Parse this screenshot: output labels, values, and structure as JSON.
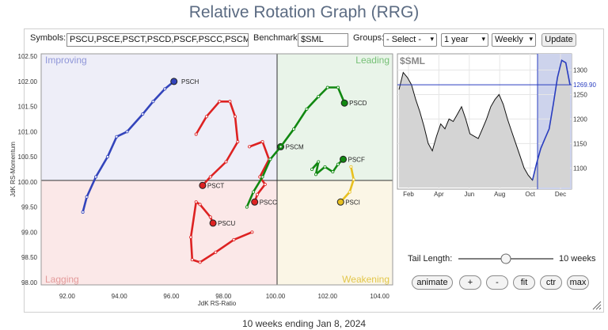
{
  "title": "Relative Rotation Graph (RRG)",
  "toolbar": {
    "symbols_label": "Symbols:",
    "symbols_value": "PSCU,PSCE,PSCT,PSCD,PSCF,PSCC,PSCM,PS(",
    "benchmark_label": "Benchmark:",
    "benchmark_value": "$SML",
    "groups_label": "Groups:",
    "groups_value": "- Select -",
    "period_value": "1 year",
    "frequency_value": "Weekly",
    "update_label": "Update"
  },
  "quadrants": {
    "improving": "Improving",
    "leading": "Leading",
    "lagging": "Lagging",
    "weakening": "Weakening"
  },
  "colors": {
    "improving_bg": "#eeeef8",
    "leading_bg": "#e9f4e9",
    "lagging_bg": "#fbe8e8",
    "weakening_bg": "#fbf6e6",
    "blue": "#3344bb",
    "red": "#dd2222",
    "green": "#118811",
    "yellow": "#e8c020"
  },
  "chart_data": [
    {
      "type": "scatter",
      "xlabel": "JdK RS-Ratio",
      "ylabel": "JdK RS-Momentum",
      "xlim": [
        91,
        104.5
      ],
      "ylim": [
        97.95,
        102.55
      ],
      "xticks": [
        "92.00",
        "94.00",
        "96.00",
        "98.00",
        "100.00",
        "102.00",
        "104.00"
      ],
      "yticks": [
        "102.50",
        "102.00",
        "101.50",
        "101.00",
        "100.50",
        "100.00",
        "99.50",
        "99.00",
        "98.50",
        "98.00"
      ],
      "series": [
        {
          "name": "PSCH",
          "color": "#3344bb",
          "label_x": 96.2,
          "label_y": 102.0,
          "points": [
            [
              92.6,
              99.4
            ],
            [
              92.75,
              99.7
            ],
            [
              93.1,
              100.1
            ],
            [
              93.55,
              100.5
            ],
            [
              93.9,
              100.9
            ],
            [
              94.3,
              101.0
            ],
            [
              94.9,
              101.35
            ],
            [
              95.3,
              101.6
            ],
            [
              95.75,
              101.85
            ],
            [
              96.1,
              102.0
            ]
          ]
        },
        {
          "name": "PSCT",
          "color": "#dd2222",
          "label_x": 97.2,
          "label_y": 99.93,
          "points": [
            [
              96.95,
              100.95
            ],
            [
              97.35,
              101.3
            ],
            [
              97.85,
              101.6
            ],
            [
              98.25,
              101.6
            ],
            [
              98.45,
              101.3
            ],
            [
              98.55,
              100.8
            ],
            [
              98.1,
              100.4
            ],
            [
              97.5,
              100.1
            ],
            [
              97.2,
              99.93
            ]
          ]
        },
        {
          "name": "PSCU",
          "color": "#dd2222",
          "label_x": 97.6,
          "label_y": 99.18,
          "points": [
            [
              99.1,
              99.0
            ],
            [
              98.4,
              98.85
            ],
            [
              97.7,
              98.6
            ],
            [
              97.1,
              98.4
            ],
            [
              96.8,
              98.45
            ],
            [
              96.75,
              98.9
            ],
            [
              96.95,
              99.6
            ],
            [
              97.1,
              99.55
            ],
            [
              97.5,
              99.3
            ],
            [
              97.6,
              99.18
            ]
          ]
        },
        {
          "name": "PSCC",
          "color": "#dd2222",
          "label_x": 99.2,
          "label_y": 99.6,
          "points": [
            [
              99.0,
              100.7
            ],
            [
              99.5,
              100.8
            ],
            [
              99.75,
              100.45
            ],
            [
              99.4,
              100.1
            ],
            [
              99.6,
              99.95
            ],
            [
              99.3,
              99.75
            ],
            [
              99.2,
              99.6
            ]
          ]
        },
        {
          "name": "PSCM",
          "color": "#118811",
          "label_x": 100.2,
          "label_y": 100.7,
          "points": [
            [
              98.9,
              99.5
            ],
            [
              99.15,
              99.8
            ],
            [
              99.5,
              100.1
            ],
            [
              99.8,
              100.45
            ],
            [
              100.2,
              100.7
            ]
          ]
        },
        {
          "name": "PSCD",
          "color": "#118811",
          "label_x": 102.65,
          "label_y": 101.57,
          "points": [
            [
              100.2,
              100.7
            ],
            [
              100.7,
              101.05
            ],
            [
              101.2,
              101.45
            ],
            [
              101.65,
              101.7
            ],
            [
              102.0,
              101.88
            ],
            [
              102.4,
              101.88
            ],
            [
              102.65,
              101.57
            ]
          ]
        },
        {
          "name": "PSCF",
          "color": "#118811",
          "label_x": 102.6,
          "label_y": 100.45,
          "points": [
            [
              101.4,
              100.25
            ],
            [
              101.65,
              100.4
            ],
            [
              101.55,
              100.15
            ],
            [
              101.9,
              100.3
            ],
            [
              102.2,
              100.2
            ],
            [
              102.4,
              100.35
            ],
            [
              102.6,
              100.45
            ]
          ]
        },
        {
          "name": "PSCI",
          "color": "#e8c020",
          "label_x": 102.5,
          "label_y": 99.6,
          "points": [
            [
              102.9,
              100.3
            ],
            [
              103.0,
              100.05
            ],
            [
              102.85,
              99.8
            ],
            [
              102.5,
              99.6
            ]
          ]
        }
      ]
    },
    {
      "type": "line",
      "title": "$SML",
      "xticks": [
        "Feb",
        "Apr",
        "Jun",
        "Aug",
        "Oct",
        "Dec"
      ],
      "yticks": [
        "1300",
        "1250",
        "1200",
        "1150",
        "1100"
      ],
      "ylim": [
        1060,
        1330
      ],
      "current_value": "1269.90",
      "values": [
        1260,
        1295,
        1285,
        1270,
        1240,
        1215,
        1185,
        1150,
        1135,
        1165,
        1190,
        1180,
        1200,
        1195,
        1210,
        1225,
        1200,
        1170,
        1165,
        1160,
        1180,
        1200,
        1225,
        1240,
        1250,
        1230,
        1200,
        1175,
        1150,
        1125,
        1100,
        1085,
        1075,
        1110,
        1140,
        1160,
        1180,
        1230,
        1285,
        1320,
        1315,
        1269.9
      ]
    }
  ],
  "tail": {
    "label": "Tail Length:",
    "value_text": "10 weeks",
    "value": 10,
    "max": 20
  },
  "buttons": {
    "animate": "animate",
    "plus": "+",
    "minus": "-",
    "fit": "fit",
    "ctr": "ctr",
    "max": "max"
  },
  "footer": "10 weeks ending Jan 8, 2024"
}
